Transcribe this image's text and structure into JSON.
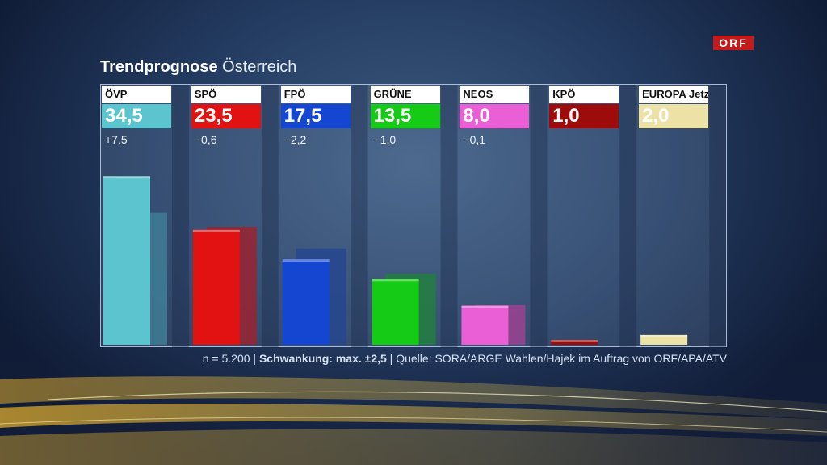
{
  "logo": "ORF",
  "title": {
    "strong": "Trendprognose",
    "light": "Österreich"
  },
  "footer": {
    "sample": "n = 5.200",
    "sep1": " | ",
    "margin": "Schwankung: max. ±2,5",
    "sep2": " | ",
    "source": "Quelle: SORA/ARGE Wahlen/Hajek im Auftrag von ORF/APA/ATV"
  },
  "chart_data": {
    "type": "bar",
    "ylim": [
      0,
      40
    ],
    "grid": false,
    "categories": [
      "ÖVP",
      "SPÖ",
      "FPÖ",
      "GRÜNE",
      "NEOS",
      "KPÖ",
      "EUROPA Jetzt"
    ],
    "value_labels": [
      "34,5",
      "23,5",
      "17,5",
      "13,5",
      "8,0",
      "1,0",
      "2,0"
    ],
    "change_labels": [
      "+7,5",
      "−0,6",
      "−2,2",
      "−1,0",
      "−0,1",
      "",
      ""
    ],
    "series": [
      {
        "values": [
          34.5,
          23.5,
          17.5,
          13.5,
          8.0,
          1.0,
          2.0
        ]
      },
      {
        "values": [
          27.0,
          24.1,
          19.7,
          14.5,
          8.1,
          null,
          null
        ]
      }
    ],
    "colors": [
      "#5bc4cf",
      "#e31212",
      "#1546d2",
      "#16cb16",
      "#ea5ed6",
      "#9e0b0b",
      "#ede2a6"
    ],
    "previous_colors": [
      "#3f7e96",
      "#9a2331",
      "#26478f",
      "#237f41",
      "#9b4392",
      "#6a2029",
      "#8d8870"
    ]
  }
}
